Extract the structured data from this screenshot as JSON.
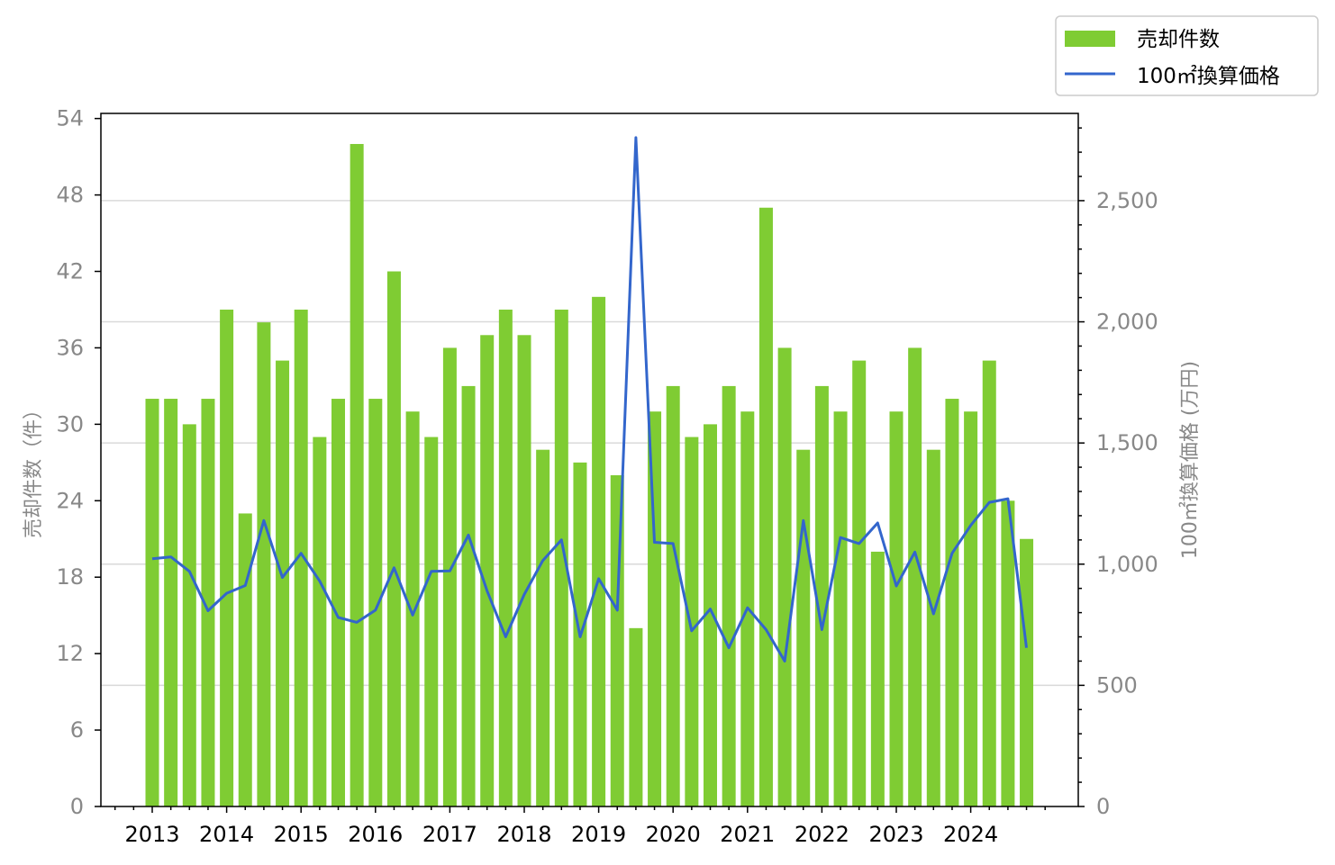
{
  "chart_data": {
    "type": "bar",
    "x_tick_labels": [
      "2013",
      "2014",
      "2015",
      "2016",
      "2017",
      "2018",
      "2019",
      "2020",
      "2021",
      "2022",
      "2023",
      "2024"
    ],
    "quarters": [
      "2013Q1",
      "2013Q2",
      "2013Q3",
      "2013Q4",
      "2014Q1",
      "2014Q2",
      "2014Q3",
      "2014Q4",
      "2015Q1",
      "2015Q2",
      "2015Q3",
      "2015Q4",
      "2016Q1",
      "2016Q2",
      "2016Q3",
      "2016Q4",
      "2017Q1",
      "2017Q2",
      "2017Q3",
      "2017Q4",
      "2018Q1",
      "2018Q2",
      "2018Q3",
      "2018Q4",
      "2019Q1",
      "2019Q2",
      "2019Q3",
      "2019Q4",
      "2020Q1",
      "2020Q2",
      "2020Q3",
      "2020Q4",
      "2021Q1",
      "2021Q2",
      "2021Q3",
      "2021Q4",
      "2022Q1",
      "2022Q2",
      "2022Q3",
      "2022Q4",
      "2023Q1",
      "2023Q2",
      "2023Q3",
      "2023Q4",
      "2024Q1",
      "2024Q2",
      "2024Q3",
      "2024Q4"
    ],
    "series": [
      {
        "name": "売却件数",
        "type": "bar",
        "axis": "left",
        "color": "#7fcc33",
        "values": [
          32,
          32,
          30,
          32,
          39,
          23,
          38,
          35,
          39,
          29,
          32,
          52,
          32,
          42,
          31,
          29,
          36,
          33,
          37,
          39,
          37,
          28,
          39,
          27,
          40,
          26,
          14,
          31,
          33,
          29,
          30,
          33,
          31,
          47,
          36,
          28,
          33,
          31,
          35,
          20,
          31,
          36,
          28,
          32,
          31,
          35,
          24,
          21
        ]
      },
      {
        "name": "100㎡換算価格",
        "type": "line",
        "axis": "right",
        "color": "#3366cc",
        "values": [
          1022,
          1030,
          970,
          808,
          880,
          912,
          1180,
          945,
          1045,
          930,
          780,
          760,
          810,
          985,
          790,
          970,
          972,
          1120,
          890,
          700,
          875,
          1015,
          1100,
          700,
          940,
          810,
          2760,
          1090,
          1085,
          725,
          815,
          655,
          820,
          730,
          600,
          1180,
          730,
          1110,
          1085,
          1170,
          910,
          1050,
          795,
          1045,
          1160,
          1255,
          1270,
          655
        ]
      }
    ],
    "left_axis": {
      "label": "売却件数（件）",
      "ylim": [
        0,
        54.4
      ],
      "ticks": [
        "0",
        "6",
        "12",
        "18",
        "24",
        "30",
        "36",
        "42",
        "48",
        "54"
      ]
    },
    "right_axis": {
      "label": "100㎡換算価格 (万円)",
      "ylim": [
        0,
        2860
      ],
      "ticks": [
        "0",
        "500",
        "1,000",
        "1,500",
        "2,000",
        "2,500"
      ]
    },
    "grid": "horizontal, right axis",
    "legend_placement": "top-right outside"
  }
}
